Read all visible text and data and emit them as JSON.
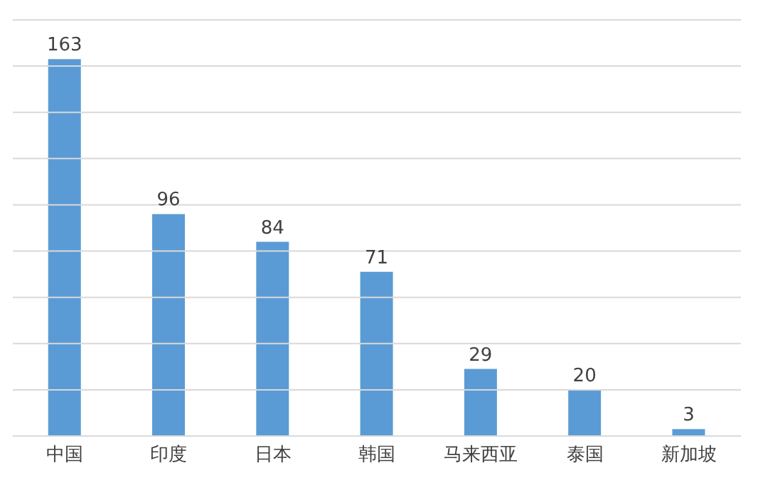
{
  "chart_data": {
    "type": "bar",
    "categories": [
      "中国",
      "印度",
      "日本",
      "韩国",
      "马来西亚",
      "泰国",
      "新加坡"
    ],
    "values": [
      163,
      96,
      84,
      71,
      29,
      20,
      3
    ],
    "color": "#5b9bd5",
    "data_labels": true,
    "ylim": [
      0,
      180
    ],
    "yticks": [
      0,
      {
        "value": 20,
        "label": null
      },
      {
        "value": 40,
        "label": null
      },
      {
        "value": 60,
        "label": null
      },
      {
        "value": 80,
        "label": null
      },
      {
        "value": 100,
        "label": null
      },
      {
        "value": 120,
        "label": null
      },
      {
        "value": 140,
        "label": null
      },
      {
        "value": 160,
        "label": null
      },
      {
        "value": 180,
        "label": null
      }
    ],
    "grid": "y",
    "tick_labels": "x",
    "legend": false
  }
}
